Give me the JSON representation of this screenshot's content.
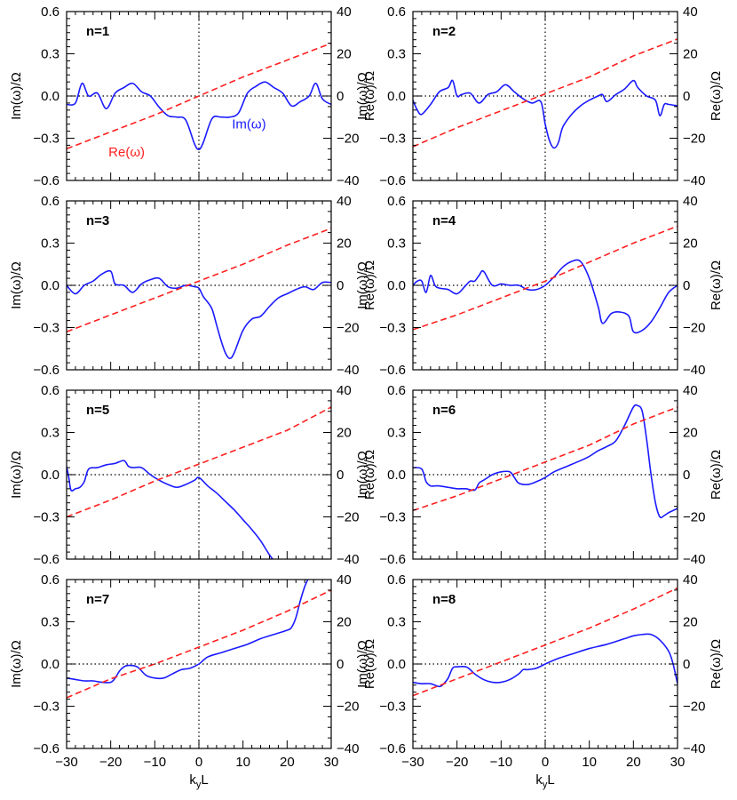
{
  "figure": {
    "xlabel": "kyL",
    "ylabel_left": "Im(ω)/Ω",
    "ylabel_right": "Re(ω)/Ω",
    "annotations": {
      "re_label": "Re(ω)",
      "im_label": "Im(ω)"
    },
    "colors": {
      "im": "#1a1aff",
      "re": "#ff2020",
      "axis": "#000000"
    }
  },
  "chart_data": [
    {
      "type": "line",
      "panel_label": "n=1",
      "xlim": [
        -30,
        30
      ],
      "ylim_left": [
        -0.6,
        0.6
      ],
      "ylim_right": [
        -40,
        40
      ],
      "xticks": [
        -30,
        -20,
        -10,
        0,
        10,
        20,
        30
      ],
      "yticks_left": [
        "-0.6",
        "-0.3",
        "0.0",
        "0.3",
        "0.6"
      ],
      "yticks_right": [
        "-40",
        "-20",
        "0",
        "20",
        "40"
      ],
      "grid": false,
      "zero_lines": "dotted",
      "series": [
        {
          "key": "im",
          "axis": "left",
          "style": "solid",
          "x": [
            -30,
            -28,
            -26.5,
            -25,
            -23,
            -21,
            -19,
            -17,
            -15,
            -13,
            -11,
            -9,
            -7,
            -5,
            -3,
            -1,
            0,
            1,
            3,
            5,
            7,
            9,
            11,
            13,
            15,
            17,
            19,
            21,
            23,
            25,
            26.5,
            28,
            30
          ],
          "y": [
            -0.06,
            -0.05,
            0.09,
            0.0,
            0.02,
            -0.09,
            0.02,
            0.06,
            0.09,
            0.03,
            0.0,
            -0.08,
            -0.14,
            -0.15,
            -0.17,
            -0.34,
            -0.38,
            -0.33,
            -0.16,
            -0.15,
            -0.15,
            -0.12,
            0.02,
            0.07,
            0.1,
            0.06,
            0.02,
            -0.07,
            -0.04,
            0.0,
            0.09,
            -0.02,
            -0.06
          ]
        },
        {
          "key": "re",
          "axis": "right",
          "style": "dashed",
          "x": [
            -30,
            -20,
            -10,
            0,
            10,
            20,
            30
          ],
          "y": [
            -25,
            -17,
            -9,
            0,
            9,
            17,
            25
          ]
        }
      ]
    },
    {
      "type": "line",
      "panel_label": "n=2",
      "xlim": [
        -30,
        30
      ],
      "ylim_left": [
        -0.6,
        0.6
      ],
      "ylim_right": [
        -40,
        40
      ],
      "xticks": [
        -30,
        -20,
        -10,
        0,
        10,
        20,
        30
      ],
      "yticks_left": [
        "-0.6",
        "-0.3",
        "0.0",
        "0.3",
        "0.6"
      ],
      "yticks_right": [
        "-40",
        "-20",
        "0",
        "20",
        "40"
      ],
      "grid": false,
      "zero_lines": "dotted",
      "series": [
        {
          "key": "im",
          "axis": "left",
          "style": "solid",
          "x": [
            -30,
            -29,
            -28,
            -26,
            -24,
            -22,
            -21,
            -20,
            -19,
            -17,
            -15,
            -13,
            -11,
            -9,
            -7,
            -5,
            -3,
            -1,
            0,
            1,
            2,
            3,
            4,
            6,
            8,
            10,
            12,
            13,
            14,
            16,
            18,
            20,
            21,
            23,
            25,
            26,
            27,
            28,
            30
          ],
          "y": [
            -0.03,
            -0.1,
            -0.13,
            -0.06,
            0.03,
            0.06,
            0.11,
            0.0,
            0.01,
            0.02,
            -0.05,
            0.01,
            0.03,
            0.08,
            0.03,
            -0.02,
            -0.05,
            -0.04,
            -0.2,
            -0.32,
            -0.37,
            -0.33,
            -0.22,
            -0.13,
            -0.07,
            -0.03,
            0.0,
            0.01,
            -0.04,
            0.01,
            0.05,
            0.11,
            0.06,
            0.0,
            -0.03,
            -0.14,
            -0.06,
            -0.06,
            -0.07
          ]
        },
        {
          "key": "re",
          "axis": "right",
          "style": "dashed",
          "x": [
            -30,
            -20,
            -10,
            0,
            10,
            20,
            30
          ],
          "y": [
            -24,
            -15,
            -7,
            1,
            9,
            19,
            27
          ]
        }
      ]
    },
    {
      "type": "line",
      "panel_label": "n=3",
      "xlim": [
        -30,
        30
      ],
      "ylim_left": [
        -0.6,
        0.6
      ],
      "ylim_right": [
        -40,
        40
      ],
      "xticks": [
        -30,
        -20,
        -10,
        0,
        10,
        20,
        30
      ],
      "yticks_left": [
        "-0.6",
        "-0.3",
        "0.0",
        "0.3",
        "0.6"
      ],
      "yticks_right": [
        "-40",
        "-20",
        "0",
        "20",
        "40"
      ],
      "grid": false,
      "zero_lines": "dotted",
      "series": [
        {
          "key": "im",
          "axis": "left",
          "style": "solid",
          "x": [
            -30,
            -28,
            -26,
            -24,
            -22,
            -20,
            -19,
            -17,
            -15,
            -13,
            -11,
            -9,
            -7,
            -5,
            -3,
            -1,
            0,
            1,
            2,
            3,
            4,
            5,
            6,
            7,
            8,
            10,
            12,
            14,
            16,
            18,
            20,
            22,
            24,
            26,
            28,
            30
          ],
          "y": [
            0.0,
            -0.06,
            0.0,
            0.03,
            0.08,
            0.1,
            0.01,
            0.0,
            -0.05,
            0.01,
            0.04,
            0.05,
            -0.01,
            -0.02,
            0.0,
            -0.01,
            -0.02,
            -0.08,
            -0.12,
            -0.17,
            -0.28,
            -0.39,
            -0.48,
            -0.52,
            -0.48,
            -0.32,
            -0.24,
            -0.22,
            -0.15,
            -0.09,
            -0.06,
            -0.03,
            -0.01,
            -0.03,
            0.02,
            0.02
          ]
        },
        {
          "key": "re",
          "axis": "right",
          "style": "dashed",
          "x": [
            -30,
            -20,
            -10,
            0,
            10,
            20,
            30
          ],
          "y": [
            -22,
            -14,
            -6,
            2,
            10,
            19,
            27
          ]
        }
      ]
    },
    {
      "type": "line",
      "panel_label": "n=4",
      "xlim": [
        -30,
        30
      ],
      "ylim_left": [
        -0.6,
        0.6
      ],
      "ylim_right": [
        -40,
        40
      ],
      "xticks": [
        -30,
        -20,
        -10,
        0,
        10,
        20,
        30
      ],
      "yticks_left": [
        "-0.6",
        "-0.3",
        "0.0",
        "0.3",
        "0.6"
      ],
      "yticks_right": [
        "-40",
        "-20",
        "0",
        "20",
        "40"
      ],
      "grid": false,
      "zero_lines": "dotted",
      "series": [
        {
          "key": "im",
          "axis": "left",
          "style": "solid",
          "x": [
            -30,
            -29,
            -28,
            -27,
            -26,
            -25,
            -24,
            -22,
            -20,
            -18,
            -17,
            -16,
            -15,
            -14,
            -12,
            -10,
            -8,
            -6,
            -4,
            -2,
            0,
            2,
            4,
            6,
            8,
            10,
            12,
            13,
            15,
            17,
            19,
            20,
            22,
            24,
            26,
            28,
            30
          ],
          "y": [
            0.0,
            0.03,
            0.03,
            -0.05,
            0.07,
            0.0,
            -0.02,
            -0.03,
            -0.06,
            0.0,
            0.03,
            0.03,
            0.07,
            0.1,
            0.0,
            0.01,
            0.0,
            0.0,
            -0.03,
            -0.03,
            0.0,
            0.06,
            0.13,
            0.17,
            0.17,
            0.05,
            -0.15,
            -0.27,
            -0.2,
            -0.19,
            -0.22,
            -0.33,
            -0.32,
            -0.26,
            -0.16,
            -0.05,
            0.0
          ]
        },
        {
          "key": "re",
          "axis": "right",
          "style": "dashed",
          "x": [
            -30,
            -20,
            -10,
            0,
            10,
            20,
            30
          ],
          "y": [
            -21,
            -14,
            -6,
            2,
            11,
            20,
            28
          ]
        }
      ]
    },
    {
      "type": "line",
      "panel_label": "n=5",
      "xlim": [
        -30,
        30
      ],
      "ylim_left": [
        -0.6,
        0.6
      ],
      "ylim_right": [
        -40,
        40
      ],
      "xticks": [
        -30,
        -20,
        -10,
        0,
        10,
        20,
        30
      ],
      "yticks_left": [
        "-0.6",
        "-0.3",
        "0.0",
        "0.3",
        "0.6"
      ],
      "yticks_right": [
        "-40",
        "-20",
        "0",
        "20",
        "40"
      ],
      "grid": false,
      "zero_lines": "dotted",
      "series": [
        {
          "key": "im",
          "axis": "left",
          "style": "solid",
          "x": [
            -30,
            -29.5,
            -29,
            -28,
            -27,
            -26,
            -25,
            -23,
            -21,
            -19,
            -17,
            -16,
            -15,
            -13,
            -11,
            -9,
            -7,
            -5,
            -3,
            -1,
            0,
            2,
            4,
            6,
            8,
            10,
            12,
            14,
            16,
            17
          ],
          "y": [
            0.06,
            -0.02,
            -0.11,
            -0.1,
            -0.09,
            -0.05,
            0.04,
            0.05,
            0.07,
            0.08,
            0.1,
            0.06,
            0.05,
            0.05,
            0.0,
            -0.04,
            -0.07,
            -0.09,
            -0.07,
            -0.04,
            -0.02,
            -0.08,
            -0.13,
            -0.19,
            -0.25,
            -0.32,
            -0.39,
            -0.47,
            -0.57,
            -0.61
          ]
        },
        {
          "key": "re",
          "axis": "right",
          "style": "dashed",
          "x": [
            -30,
            -20,
            -10,
            0,
            10,
            20,
            30
          ],
          "y": [
            -20,
            -12,
            -3,
            5,
            13,
            21,
            32
          ]
        }
      ]
    },
    {
      "type": "line",
      "panel_label": "n=6",
      "xlim": [
        -30,
        30
      ],
      "ylim_left": [
        -0.6,
        0.6
      ],
      "ylim_right": [
        -40,
        40
      ],
      "xticks": [
        -30,
        -20,
        -10,
        0,
        10,
        20,
        30
      ],
      "yticks_left": [
        "-0.6",
        "-0.3",
        "0.0",
        "0.3",
        "0.6"
      ],
      "yticks_right": [
        "-40",
        "-20",
        "0",
        "20",
        "40"
      ],
      "grid": false,
      "zero_lines": "dotted",
      "series": [
        {
          "key": "im",
          "axis": "left",
          "style": "solid",
          "x": [
            -30,
            -28,
            -27,
            -26,
            -25,
            -24,
            -22,
            -20,
            -18,
            -16,
            -15,
            -14,
            -13,
            -12,
            -10,
            -8,
            -7,
            -6,
            -4,
            -2,
            0,
            2,
            5,
            8,
            10,
            12,
            14,
            16,
            18,
            20,
            21,
            22,
            23,
            24,
            25,
            26,
            27,
            28,
            30
          ],
          "y": [
            0.05,
            0.04,
            -0.05,
            -0.08,
            -0.08,
            -0.08,
            -0.09,
            -0.1,
            -0.1,
            -0.11,
            -0.06,
            -0.04,
            -0.02,
            0.0,
            0.02,
            0.02,
            -0.02,
            -0.06,
            -0.07,
            -0.05,
            -0.02,
            0.02,
            0.06,
            0.1,
            0.13,
            0.17,
            0.2,
            0.24,
            0.35,
            0.48,
            0.49,
            0.45,
            0.25,
            0.0,
            -0.2,
            -0.3,
            -0.29,
            -0.27,
            -0.24
          ]
        },
        {
          "key": "re",
          "axis": "right",
          "style": "dashed",
          "x": [
            -30,
            -20,
            -10,
            0,
            10,
            20,
            30
          ],
          "y": [
            -17,
            -10,
            -2,
            6,
            14,
            24,
            32
          ]
        }
      ]
    },
    {
      "type": "line",
      "panel_label": "n=7",
      "xlim": [
        -30,
        30
      ],
      "ylim_left": [
        -0.6,
        0.6
      ],
      "ylim_right": [
        -40,
        40
      ],
      "xticks": [
        -30,
        -20,
        -10,
        0,
        10,
        20,
        30
      ],
      "yticks_left": [
        "-0.6",
        "-0.3",
        "0.0",
        "0.3",
        "0.6"
      ],
      "yticks_right": [
        "-40",
        "-20",
        "0",
        "20",
        "40"
      ],
      "grid": false,
      "zero_lines": "dotted",
      "series": [
        {
          "key": "im",
          "axis": "left",
          "style": "solid",
          "x": [
            -30,
            -28,
            -26,
            -24,
            -22,
            -20,
            -19,
            -18,
            -17,
            -16,
            -14,
            -12,
            -10,
            -8,
            -6,
            -4,
            -2,
            0,
            2,
            5,
            8,
            11,
            14,
            17,
            20,
            21,
            22,
            23,
            24,
            25
          ],
          "y": [
            -0.1,
            -0.11,
            -0.12,
            -0.12,
            -0.13,
            -0.13,
            -0.1,
            -0.05,
            -0.02,
            -0.01,
            -0.02,
            -0.08,
            -0.1,
            -0.1,
            -0.07,
            -0.04,
            -0.03,
            0.0,
            0.05,
            0.08,
            0.11,
            0.14,
            0.18,
            0.21,
            0.24,
            0.26,
            0.33,
            0.45,
            0.55,
            0.62
          ]
        },
        {
          "key": "re",
          "axis": "right",
          "style": "dashed",
          "x": [
            -30,
            -20,
            -10,
            0,
            10,
            20,
            30
          ],
          "y": [
            -16,
            -7,
            0,
            8,
            16,
            25,
            35
          ]
        }
      ]
    },
    {
      "type": "line",
      "panel_label": "n=8",
      "xlim": [
        -30,
        30
      ],
      "ylim_left": [
        -0.6,
        0.6
      ],
      "ylim_right": [
        -40,
        40
      ],
      "xticks": [
        -30,
        -20,
        -10,
        0,
        10,
        20,
        30
      ],
      "yticks_left": [
        "-0.6",
        "-0.3",
        "0.0",
        "0.3",
        "0.6"
      ],
      "yticks_right": [
        "-40",
        "-20",
        "0",
        "20",
        "40"
      ],
      "grid": false,
      "zero_lines": "dotted",
      "series": [
        {
          "key": "im",
          "axis": "left",
          "style": "solid",
          "x": [
            -30,
            -28,
            -26,
            -24,
            -23,
            -22,
            -21,
            -20,
            -18,
            -17,
            -16,
            -14,
            -12,
            -10,
            -8,
            -6,
            -5,
            -4,
            -2,
            0,
            3,
            6,
            10,
            14,
            18,
            20,
            22,
            24,
            26,
            28,
            29,
            30
          ],
          "y": [
            -0.13,
            -0.14,
            -0.14,
            -0.16,
            -0.14,
            -0.1,
            -0.03,
            -0.02,
            -0.02,
            -0.04,
            -0.07,
            -0.11,
            -0.13,
            -0.13,
            -0.11,
            -0.07,
            -0.04,
            -0.04,
            -0.03,
            0.0,
            0.04,
            0.07,
            0.11,
            0.14,
            0.18,
            0.2,
            0.21,
            0.21,
            0.17,
            0.09,
            0.0,
            -0.14
          ]
        },
        {
          "key": "re",
          "axis": "right",
          "style": "dashed",
          "x": [
            -30,
            -20,
            -10,
            0,
            10,
            20,
            30
          ],
          "y": [
            -15,
            -7,
            1,
            9,
            17,
            26,
            36
          ]
        }
      ]
    }
  ]
}
